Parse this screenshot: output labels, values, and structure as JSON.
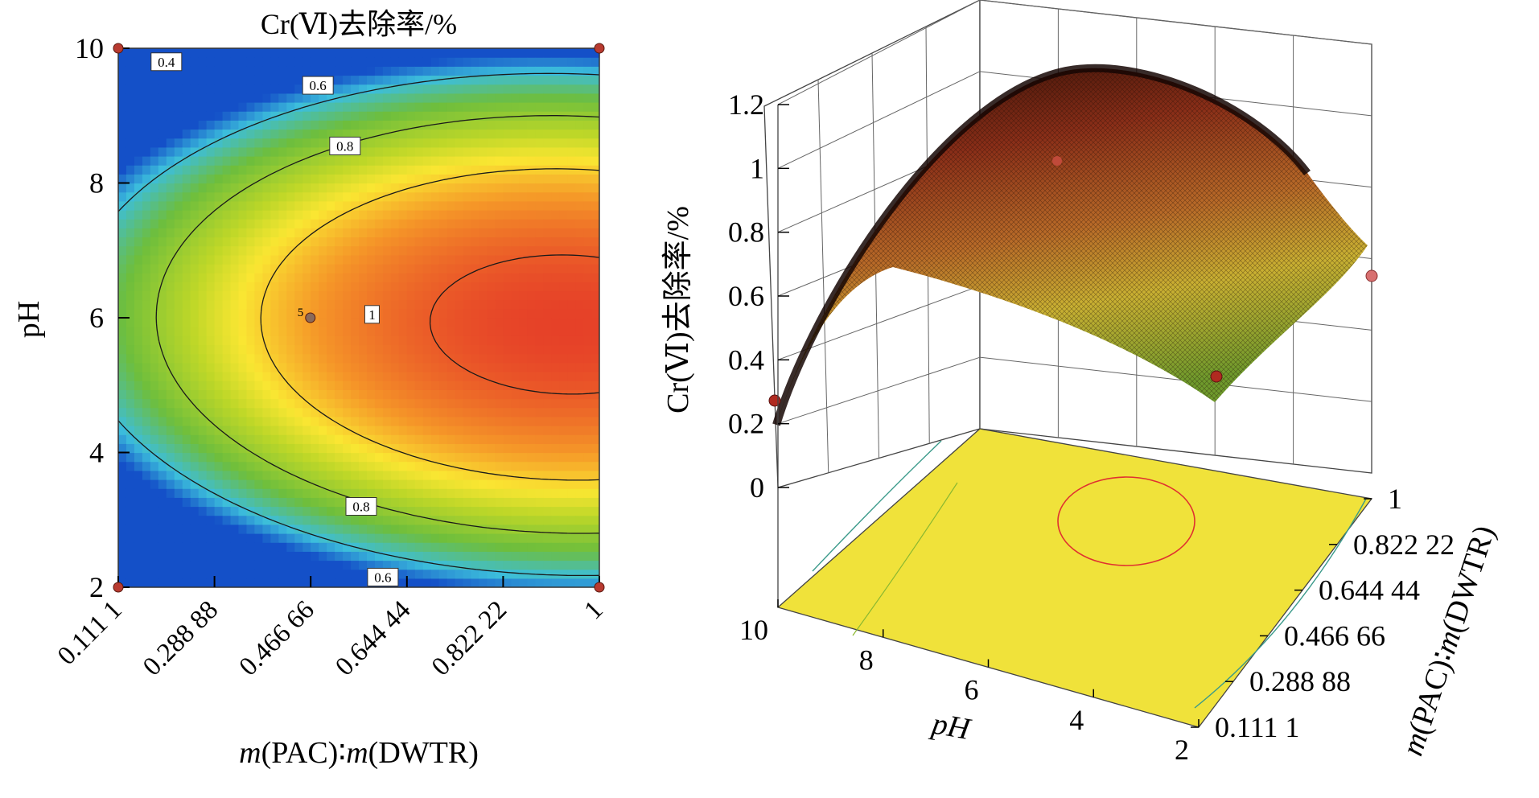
{
  "chart_data": [
    {
      "type": "heatmap",
      "title": "Cr(Ⅵ)去除率/%",
      "xlabel_italic": "m",
      "xlabel_part1": "(PAC)∶",
      "xlabel_part2": "(DWTR)",
      "ylabel": "pH",
      "xlim": [
        0.1111,
        1
      ],
      "ylim": [
        2,
        10
      ],
      "x_ticks": [
        "0.111 1",
        "0.288 88",
        "0.466 66",
        "0.644 44",
        "0.822 22",
        "1"
      ],
      "y_ticks": [
        "2",
        "4",
        "6",
        "8",
        "10"
      ],
      "contour_levels": [
        0.4,
        0.6,
        0.8,
        1.0
      ],
      "contour_labels": [
        {
          "text": "0.4",
          "x": 0.2,
          "y": 9.8
        },
        {
          "text": "0.6",
          "x": 0.48,
          "y": 9.45
        },
        {
          "text": "0.8",
          "x": 0.53,
          "y": 8.55
        },
        {
          "text": "1",
          "x": 0.58,
          "y": 6.05
        },
        {
          "text": "0.8",
          "x": 0.56,
          "y": 3.2
        },
        {
          "text": "0.6",
          "x": 0.6,
          "y": 2.15
        }
      ],
      "design_points": [
        {
          "x": 0.1111,
          "y": 10
        },
        {
          "x": 1,
          "y": 10
        },
        {
          "x": 0.1111,
          "y": 2
        },
        {
          "x": 1,
          "y": 2
        },
        {
          "x": 0.466,
          "y": 6,
          "label": "5"
        }
      ],
      "colormap": "blue-green-yellow-red"
    },
    {
      "type": "surface3d",
      "zlabel": "Cr(Ⅵ)去除率/%",
      "xlabel": "pH",
      "ylabel_italic": "m",
      "ylabel_part1": "(PAC)∶",
      "ylabel_part2": "(DWTR)",
      "z_ticks": [
        "0",
        "0.2",
        "0.4",
        "0.6",
        "0.8",
        "1",
        "1.2"
      ],
      "ph_ticks": [
        "10",
        "8",
        "6",
        "4",
        "2"
      ],
      "ratio_ticks": [
        "0.111 1",
        "0.288 88",
        "0.466 66",
        "0.644 44",
        "0.822 22",
        "1"
      ],
      "zlim": [
        0,
        1.2
      ],
      "ph_range": [
        2,
        10
      ],
      "ratio_range": [
        0.1111,
        1
      ],
      "floor_color": "#f0e23a",
      "floor_contour_colors": [
        "#e03030",
        "#3a9a8a"
      ]
    }
  ]
}
